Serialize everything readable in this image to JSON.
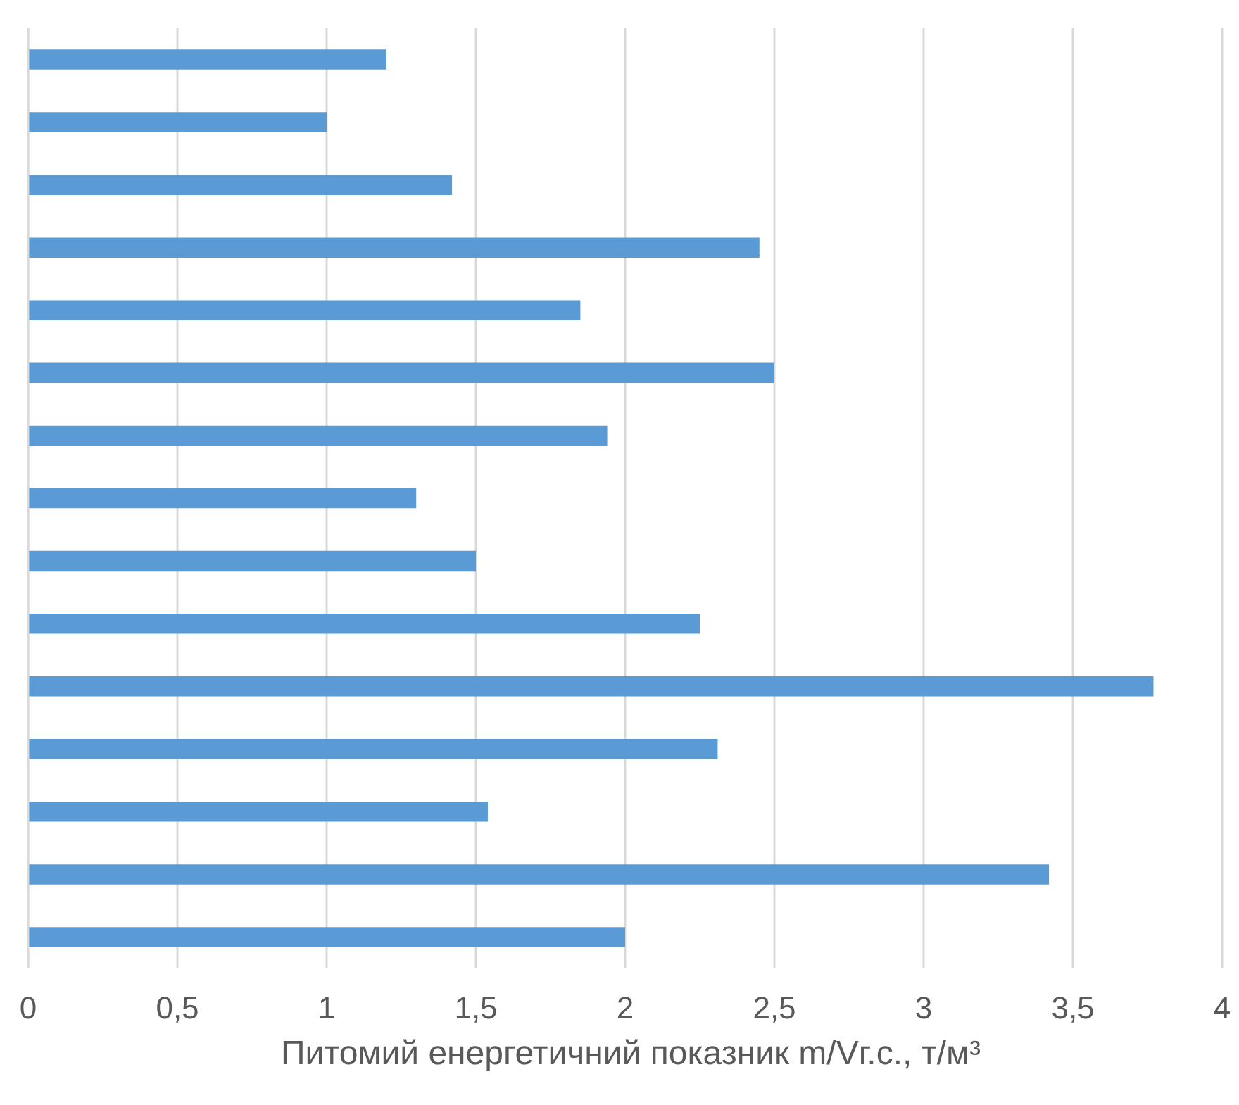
{
  "chart_data": {
    "type": "bar",
    "orientation": "horizontal",
    "xlabel": "Питомий енергетичний показник m/Vг.с., т/м³",
    "categories": [
      null,
      null,
      null,
      null,
      null,
      null,
      null,
      null,
      null,
      null,
      null,
      null,
      null,
      null,
      null
    ],
    "values": [
      1.2,
      1.0,
      1.42,
      2.45,
      1.85,
      2.5,
      1.94,
      1.3,
      1.5,
      2.25,
      3.77,
      2.31,
      1.54,
      3.42,
      2.0
    ],
    "color": "#5b9bd5",
    "xlim": [
      0,
      4
    ],
    "xticks": [
      0,
      {
        "value": 0.5,
        "label": "0,5"
      },
      1,
      {
        "value": 1.5,
        "label": "1,5"
      },
      2,
      {
        "value": 2.5,
        "label": "2,5"
      },
      3,
      {
        "value": 3.5,
        "label": "3,5"
      },
      4
    ],
    "grid": "x"
  }
}
